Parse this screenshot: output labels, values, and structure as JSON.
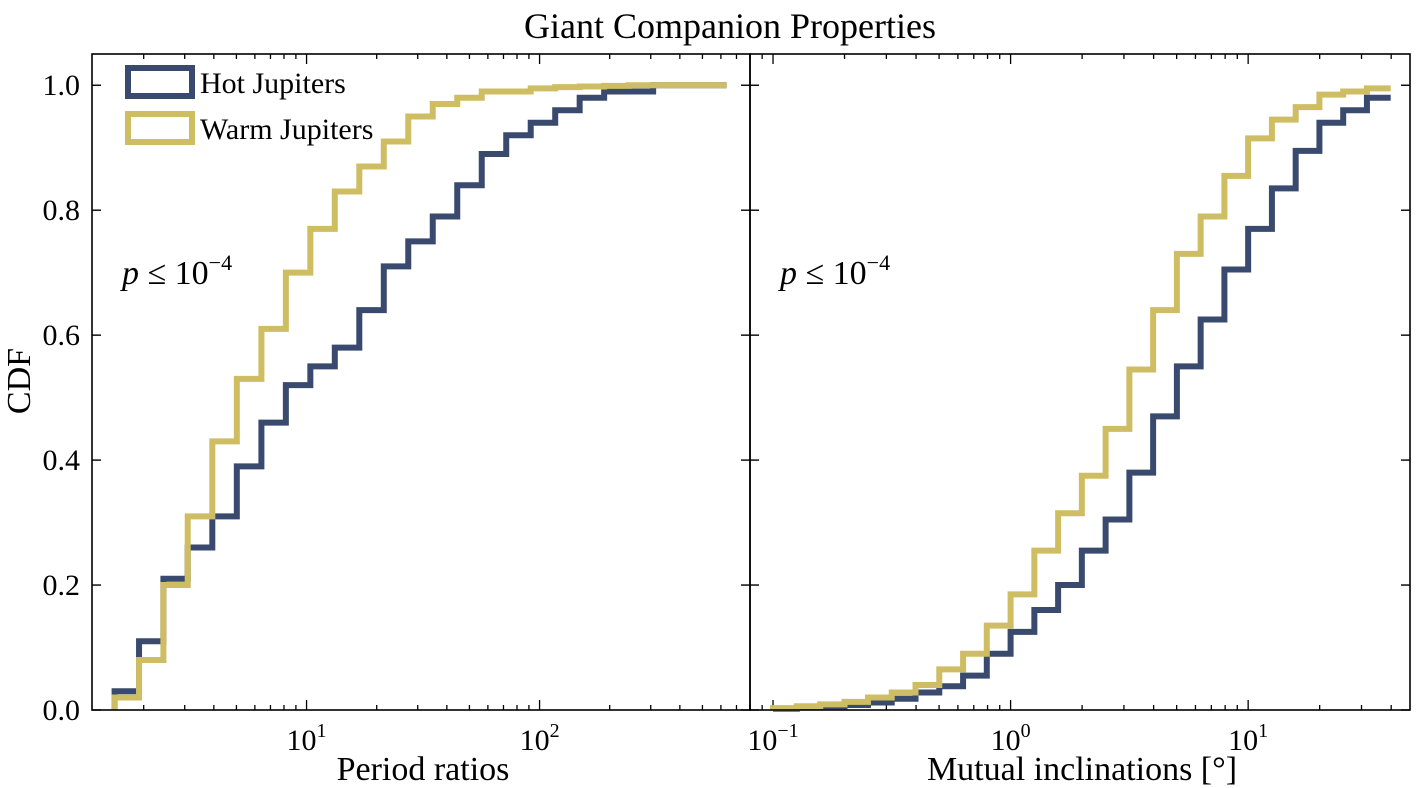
{
  "title": "Giant Companion Properties",
  "ylabel": "CDF",
  "colors": {
    "hot": "#3a4a6e",
    "warm": "#cfbd64"
  },
  "legend": {
    "position": "upper-left",
    "entries": [
      {
        "label": "Hot Jupiters",
        "color": "#3a4a6e"
      },
      {
        "label": "Warm Jupiters",
        "color": "#cfbd64"
      }
    ]
  },
  "chart_data": [
    {
      "type": "step-histogram-cdf",
      "xlabel": "Period ratios",
      "xscale": "log",
      "xlim": [
        1.2,
        800
      ],
      "ylim": [
        0,
        1.05
      ],
      "xticks": [
        {
          "value": 10,
          "base": "10",
          "exp": "1"
        },
        {
          "value": 100,
          "base": "10",
          "exp": "2"
        }
      ],
      "yticks": [
        "0.0",
        "0.2",
        "0.4",
        "0.6",
        "0.8",
        "1.0"
      ],
      "annotation": {
        "prefix": "p",
        "op": " ≤ 10",
        "exp": "−4"
      },
      "bin_edges": [
        1.5,
        1.91,
        2.43,
        3.09,
        3.94,
        5.02,
        6.4,
        8.15,
        10.38,
        13.22,
        16.84,
        21.45,
        27.32,
        34.8,
        44.33,
        56.47,
        71.93,
        91.62,
        116.7,
        148.6,
        189.3,
        241.2,
        307.2,
        391.3,
        498.5,
        635.0
      ],
      "series": [
        {
          "name": "Hot Jupiters",
          "color": "#3a4a6e",
          "values": [
            0.03,
            0.11,
            0.21,
            0.26,
            0.31,
            0.39,
            0.46,
            0.52,
            0.55,
            0.58,
            0.64,
            0.71,
            0.75,
            0.79,
            0.84,
            0.89,
            0.92,
            0.94,
            0.96,
            0.98,
            0.99,
            0.99,
            1.0,
            1.0,
            1.0
          ]
        },
        {
          "name": "Warm Jupiters",
          "color": "#cfbd64",
          "values": [
            0.02,
            0.08,
            0.2,
            0.31,
            0.43,
            0.53,
            0.61,
            0.7,
            0.77,
            0.83,
            0.87,
            0.91,
            0.95,
            0.97,
            0.98,
            0.99,
            0.99,
            0.995,
            0.997,
            0.998,
            0.999,
            1.0,
            1.0,
            1.0,
            1.0
          ]
        }
      ]
    },
    {
      "type": "step-histogram-cdf",
      "xlabel": "Mutual inclinations [°]",
      "xscale": "log",
      "xlim": [
        0.08,
        48
      ],
      "ylim": [
        0,
        1.05
      ],
      "xticks": [
        {
          "value": 0.1,
          "base": "10",
          "exp": "−1"
        },
        {
          "value": 1,
          "base": "10",
          "exp": "0"
        },
        {
          "value": 10,
          "base": "10",
          "exp": "1"
        }
      ],
      "annotation": {
        "prefix": "p",
        "op": " ≤ 10",
        "exp": "−4"
      },
      "bin_edges": [
        0.1,
        0.126,
        0.158,
        0.2,
        0.251,
        0.316,
        0.398,
        0.501,
        0.631,
        0.794,
        1.0,
        1.259,
        1.585,
        1.995,
        2.512,
        3.162,
        3.981,
        5.012,
        6.31,
        7.943,
        10.0,
        12.59,
        15.85,
        19.95,
        25.12,
        31.62,
        39.81
      ],
      "series": [
        {
          "name": "Hot Jupiters",
          "color": "#3a4a6e",
          "values": [
            0.002,
            0.004,
            0.006,
            0.008,
            0.012,
            0.018,
            0.028,
            0.038,
            0.055,
            0.09,
            0.125,
            0.16,
            0.2,
            0.255,
            0.305,
            0.38,
            0.47,
            0.55,
            0.625,
            0.705,
            0.77,
            0.835,
            0.895,
            0.94,
            0.96,
            0.98
          ]
        },
        {
          "name": "Warm Jupiters",
          "color": "#cfbd64",
          "values": [
            0.003,
            0.006,
            0.009,
            0.013,
            0.02,
            0.028,
            0.04,
            0.065,
            0.09,
            0.135,
            0.185,
            0.255,
            0.315,
            0.375,
            0.45,
            0.545,
            0.64,
            0.73,
            0.79,
            0.855,
            0.915,
            0.945,
            0.965,
            0.985,
            0.99,
            0.995
          ]
        }
      ]
    }
  ]
}
